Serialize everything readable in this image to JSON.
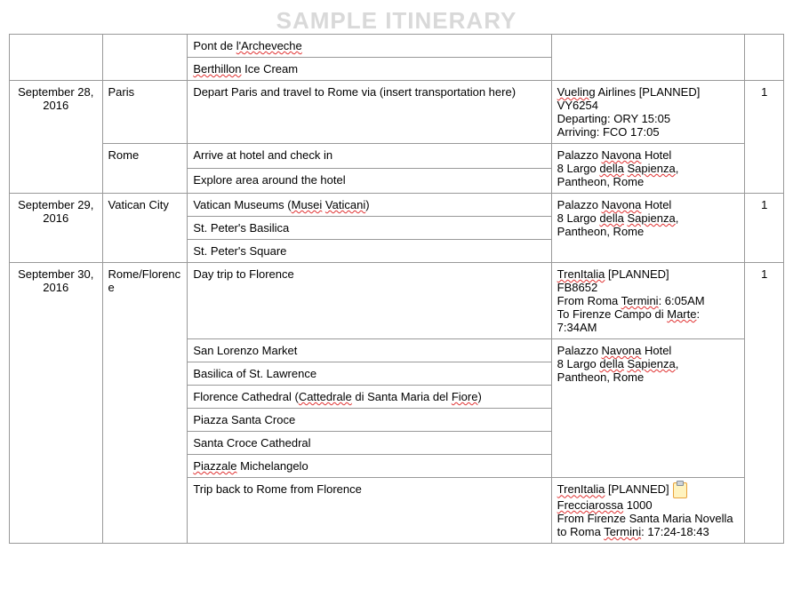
{
  "watermark": "SAMPLE ITINERARY",
  "columns": {
    "date_width_pct": 12,
    "city_width_pct": 11,
    "activity_width_pct": 47,
    "detail_width_pct": 25,
    "num_width_pct": 5
  },
  "intro_rows": {
    "activities": [
      {
        "line": "Pont de l'Archeveche",
        "squiggle": [
          "l'Archeveche"
        ]
      },
      {
        "line": "Berthillon Ice Cream",
        "squiggle": [
          "Berthillon"
        ]
      }
    ]
  },
  "days": [
    {
      "date": "September 28, 2016",
      "num": "1",
      "segments": [
        {
          "city": "Paris",
          "activities": [
            {
              "line": "Depart Paris and travel to Rome via (insert transportation here)"
            }
          ],
          "detail_lines": [
            {
              "text": "Vueling Airlines [PLANNED]",
              "squiggle": [
                "Vueling"
              ]
            },
            {
              "text": "VY6254"
            },
            {
              "text": "Departing: ORY 15:05"
            },
            {
              "text": "Arriving: FCO 17:05"
            }
          ]
        },
        {
          "city": "Rome",
          "activities": [
            {
              "line": "Arrive at hotel and check in"
            },
            {
              "line": "Explore area around the hotel"
            }
          ],
          "detail_lines": [
            {
              "text": "Palazzo Navona Hotel",
              "squiggle": [
                "Navona"
              ]
            },
            {
              "text": "8 Largo della Sapienza,",
              "squiggle": [
                "della",
                "Sapienza"
              ]
            },
            {
              "text": "Pantheon, Rome"
            }
          ]
        }
      ]
    },
    {
      "date": "September 29, 2016",
      "num": "1",
      "segments": [
        {
          "city": "Vatican City",
          "activities": [
            {
              "line": "Vatican Museums (Musei Vaticani)",
              "squiggle": [
                "Musei",
                "Vaticani"
              ]
            },
            {
              "line": "St. Peter's Basilica"
            },
            {
              "line": "St. Peter's Square"
            }
          ],
          "detail_lines": [
            {
              "text": "Palazzo Navona Hotel",
              "squiggle": [
                "Navona"
              ]
            },
            {
              "text": "8 Largo della Sapienza,",
              "squiggle": [
                "della",
                "Sapienza"
              ]
            },
            {
              "text": "Pantheon, Rome"
            }
          ]
        }
      ]
    },
    {
      "date": "September 30, 2016",
      "num": "1",
      "segments": [
        {
          "city": "Rome/Florence",
          "blocks": [
            {
              "activities": [
                {
                  "line": "Day trip to Florence"
                }
              ],
              "detail_lines": [
                {
                  "text": "TrenItalia [PLANNED]",
                  "squiggle": [
                    "TrenItalia"
                  ]
                },
                {
                  "text": "FB8652"
                },
                {
                  "text": "From Roma Termini: 6:05AM",
                  "squiggle": [
                    "Termini"
                  ]
                },
                {
                  "text": "To Firenze Campo di Marte: 7:34AM",
                  "squiggle": [
                    "Marte"
                  ]
                }
              ]
            },
            {
              "activities": [
                {
                  "line": "San Lorenzo Market"
                },
                {
                  "line": "Basilica of St. Lawrence"
                },
                {
                  "line": "Florence Cathedral (Cattedrale di Santa Maria del Fiore)",
                  "squiggle": [
                    "Cattedrale",
                    "Fiore"
                  ]
                },
                {
                  "line": "Piazza Santa Croce"
                },
                {
                  "line": "Santa Croce Cathedral"
                },
                {
                  "line": "Piazzale Michelangelo",
                  "squiggle": [
                    "Piazzale"
                  ]
                }
              ],
              "detail_lines": [
                {
                  "text": "Palazzo Navona Hotel",
                  "squiggle": [
                    "Navona"
                  ]
                },
                {
                  "text": "8 Largo della Sapienza,",
                  "squiggle": [
                    "della",
                    "Sapienza"
                  ]
                },
                {
                  "text": "Pantheon, Rome"
                }
              ]
            },
            {
              "activities": [
                {
                  "line": "Trip back to Rome from Florence"
                }
              ],
              "detail_lines": [
                {
                  "text": "TrenItalia [PLANNED]",
                  "squiggle": [
                    "TrenItalia"
                  ],
                  "has_icon": true
                },
                {
                  "text": "Frecciarossa 1000",
                  "squiggle": [
                    "Frecciarossa"
                  ]
                },
                {
                  "text": "From Firenze Santa Maria Novella to Roma Termini: 17:24-18:43",
                  "squiggle": [
                    "Termini"
                  ]
                }
              ]
            }
          ]
        }
      ]
    }
  ]
}
